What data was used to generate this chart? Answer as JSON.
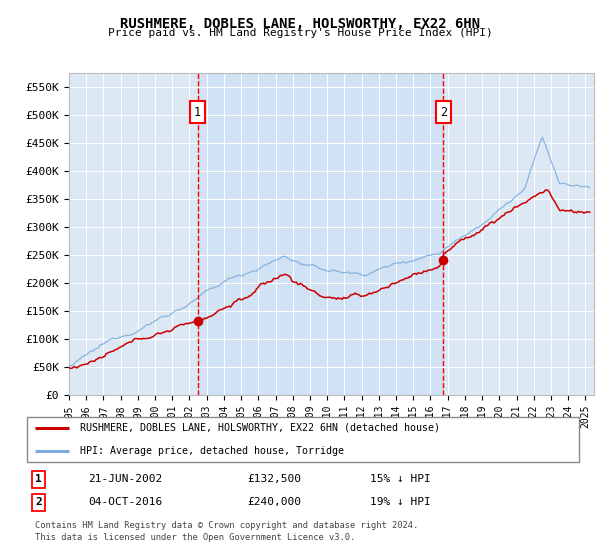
{
  "title": "RUSHMERE, DOBLES LANE, HOLSWORTHY, EX22 6HN",
  "subtitle": "Price paid vs. HM Land Registry's House Price Index (HPI)",
  "ylabel_ticks": [
    "£0",
    "£50K",
    "£100K",
    "£150K",
    "£200K",
    "£250K",
    "£300K",
    "£350K",
    "£400K",
    "£450K",
    "£500K",
    "£550K"
  ],
  "ytick_vals": [
    0,
    50000,
    100000,
    150000,
    200000,
    250000,
    300000,
    350000,
    400000,
    450000,
    500000,
    550000
  ],
  "ylim": [
    0,
    575000
  ],
  "xlim_start": 1995.0,
  "xlim_end": 2025.5,
  "xtick_years": [
    1995,
    1996,
    1997,
    1998,
    1999,
    2000,
    2001,
    2002,
    2003,
    2004,
    2005,
    2006,
    2007,
    2008,
    2009,
    2010,
    2011,
    2012,
    2013,
    2014,
    2015,
    2016,
    2017,
    2018,
    2019,
    2020,
    2021,
    2022,
    2023,
    2024,
    2025
  ],
  "sale1_x": 2002.47,
  "sale1_y": 132500,
  "sale2_x": 2016.75,
  "sale2_y": 240000,
  "red_line_color": "#cc0000",
  "blue_line_color": "#7aabdb",
  "shade_color": "#dce9f5",
  "background_color": "#dce9f5",
  "legend_entry1": "RUSHMERE, DOBLES LANE, HOLSWORTHY, EX22 6HN (detached house)",
  "legend_entry2": "HPI: Average price, detached house, Torridge",
  "footnote1": "Contains HM Land Registry data © Crown copyright and database right 2024.",
  "footnote2": "This data is licensed under the Open Government Licence v3.0.",
  "table_row1": [
    "1",
    "21-JUN-2002",
    "£132,500",
    "15% ↓ HPI"
  ],
  "table_row2": [
    "2",
    "04-OCT-2016",
    "£240,000",
    "19% ↓ HPI"
  ]
}
